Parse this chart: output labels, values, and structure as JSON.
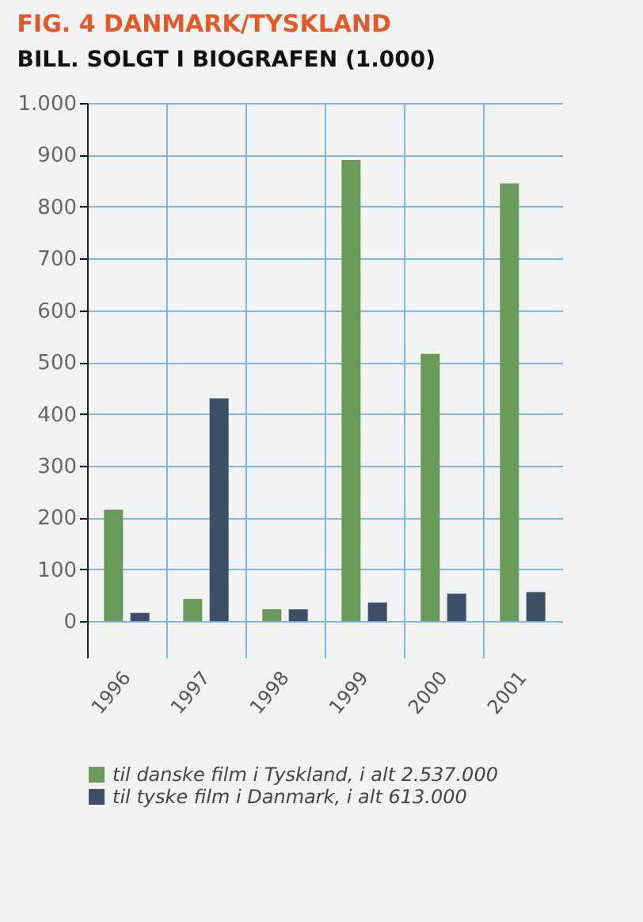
{
  "chart_data": {
    "type": "bar",
    "title": "FIG. 4 DANMARK/TYSKLAND",
    "subtitle": "BILL. SOLGT I BIOGRAFEN (1.000)",
    "categories": [
      "1996",
      "1997",
      "1998",
      "1999",
      "2000",
      "2001"
    ],
    "series": [
      {
        "name": "til danske film i Tyskland, i alt 2.537.000",
        "color": "#6a9a5a",
        "values": [
          215,
          43,
          23,
          890,
          516,
          845
        ]
      },
      {
        "name": "til tyske film i Danmark, i alt 613.000",
        "color": "#3e5068",
        "values": [
          16,
          430,
          23,
          36,
          53,
          56
        ]
      }
    ],
    "ylim": [
      -70,
      1000
    ],
    "yticks": [
      0,
      100,
      200,
      300,
      400,
      500,
      600,
      700,
      800,
      900,
      {
        "value": 1000,
        "label": "1.000"
      }
    ],
    "grid": true,
    "legend": "bottom"
  }
}
